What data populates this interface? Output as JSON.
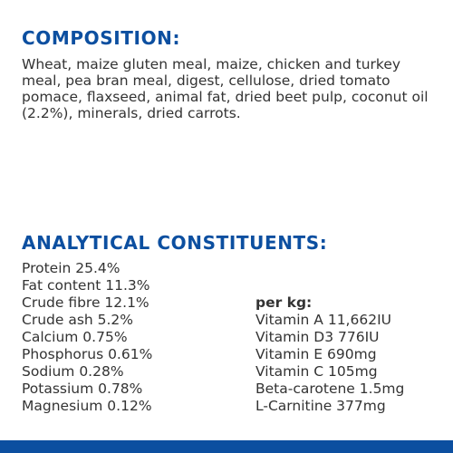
{
  "composition": {
    "heading": "COMPOSITION:",
    "text": "Wheat, maize gluten meal, maize, chicken and turkey meal, pea bran meal, digest, cellulose, dried tomato pomace, flaxseed, animal fat, dried beet pulp, coconut oil (2.2%), minerals, dried carrots."
  },
  "analytical": {
    "heading": "ANALYTICAL CONSTITUENTS:",
    "constituents": [
      "Protein 25.4%",
      "Fat content 11.3%",
      "Crude fibre 12.1%",
      "Crude ash 5.2%",
      "Calcium 0.75%",
      "Phosphorus 0.61%",
      "Sodium 0.28%",
      "Potassium 0.78%",
      "Magnesium 0.12%"
    ],
    "per_kg_label": "per kg:",
    "per_kg": [
      "Vitamin A 11,662IU",
      "Vitamin D3 776IU",
      "Vitamin E 690mg",
      "Vitamin C 105mg",
      "Beta-carotene 1.5mg",
      "L-Carnitine 377mg"
    ]
  },
  "colors": {
    "heading_blue": "#0c4fa0",
    "body_text": "#333333",
    "bar": "#0c4fa0"
  }
}
